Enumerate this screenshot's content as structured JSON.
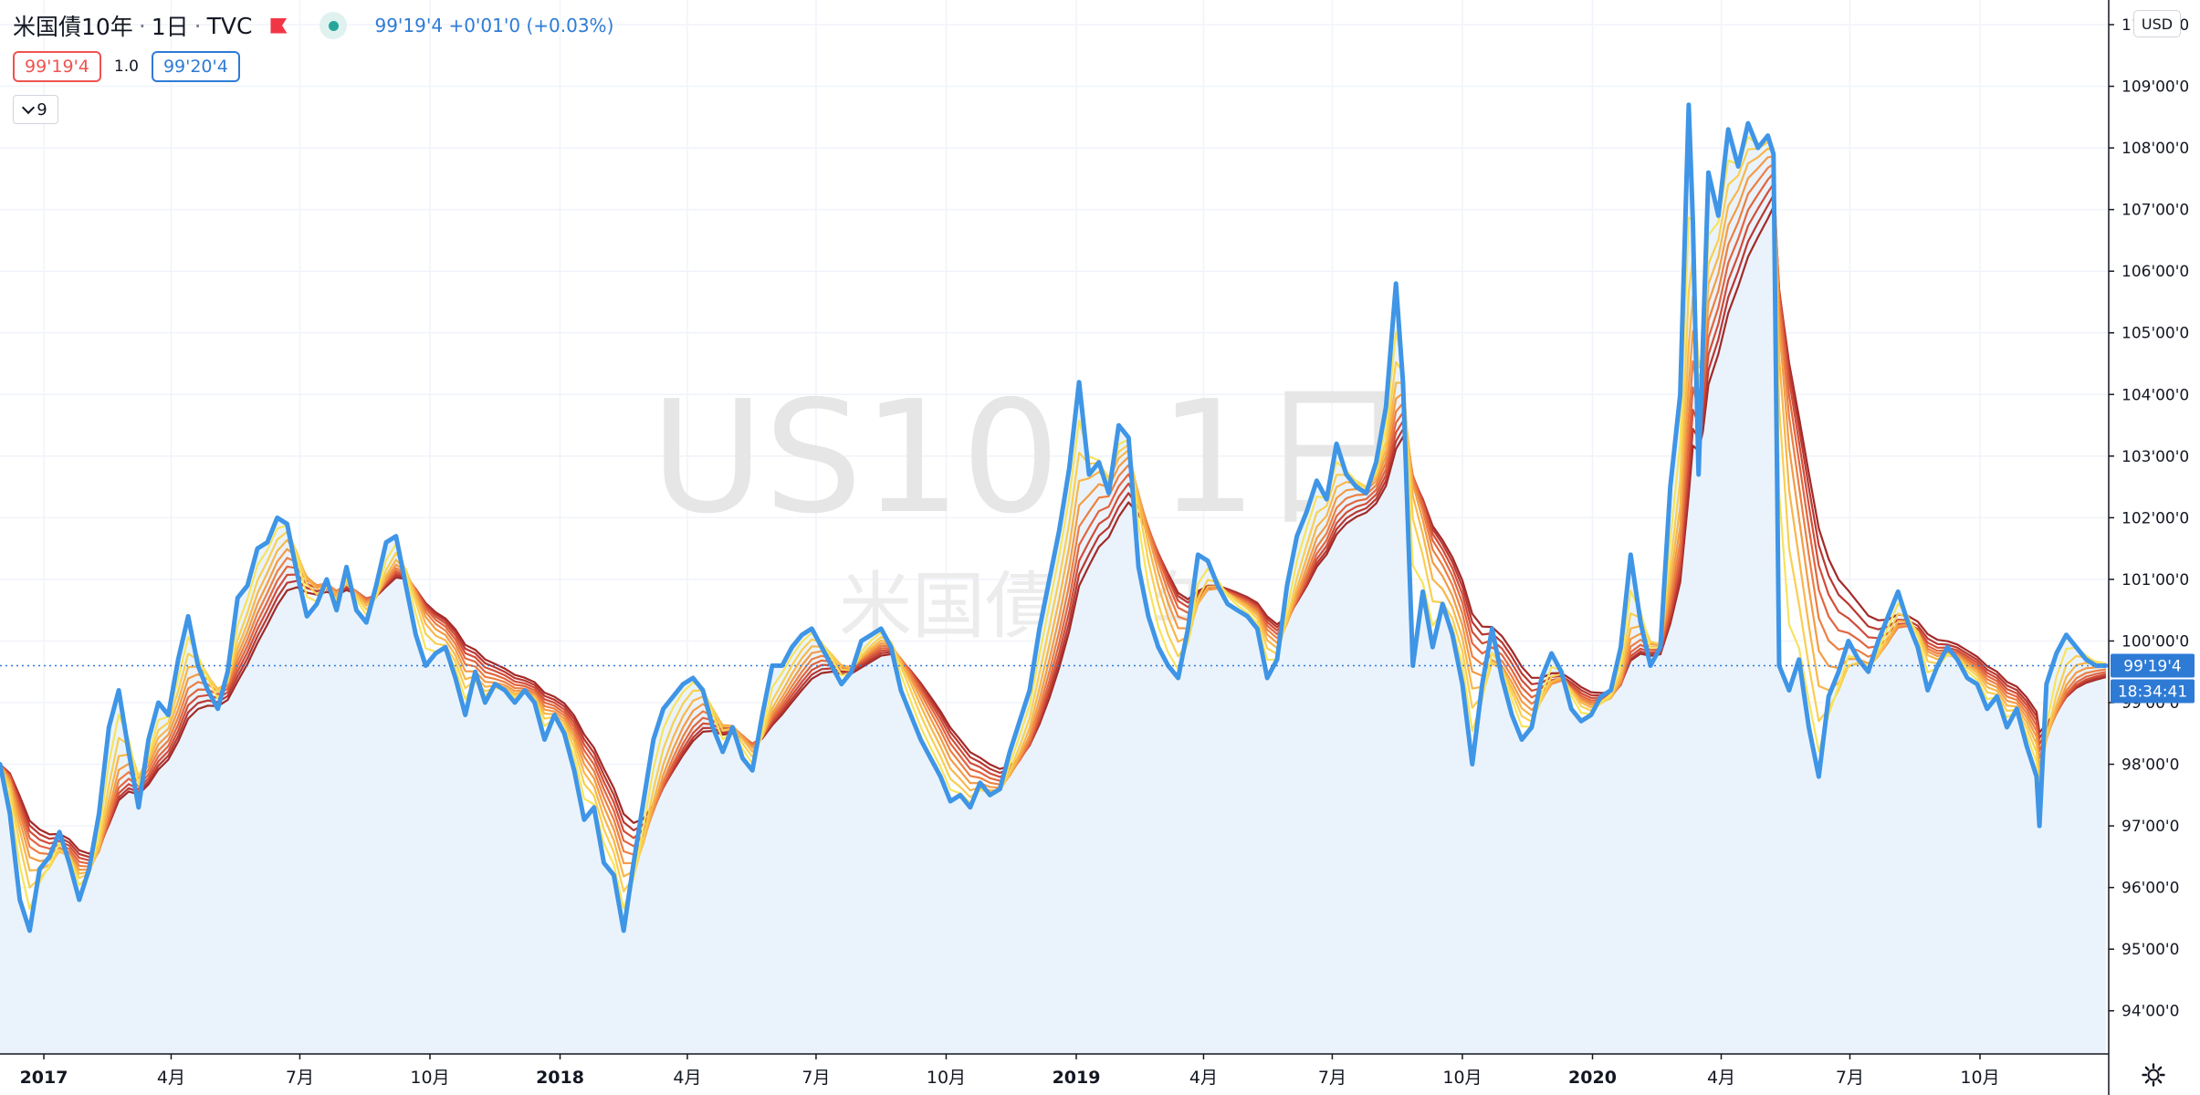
{
  "header": {
    "symbol_name": "米国債10年",
    "interval": "1日",
    "exchange": "TVC",
    "last_price": "99'19'4",
    "change": "+0'01'0",
    "change_pct": "(+0.03%)"
  },
  "quote": {
    "bid": "99'19'4",
    "spread": "1.0",
    "ask": "99'20'4"
  },
  "indicators_toggle": {
    "count": "9"
  },
  "currency_button": "USD",
  "price_tag": {
    "value": "99'19'4",
    "countdown": "18:34:41"
  },
  "watermark": {
    "symbol": "US10, 1日",
    "description": "米国債10年"
  },
  "colors": {
    "price_line": "#3f95e6",
    "area_fill": "#eaf3fc",
    "ribbon": [
      "#f7e45c",
      "#f9cf52",
      "#f8b64a",
      "#f39b45",
      "#ec7f43",
      "#e2653f",
      "#d14d39",
      "#ba3832",
      "#a12a28"
    ]
  },
  "chart_data": {
    "type": "line",
    "title": "",
    "xlabel": "",
    "ylabel": "",
    "x_range": [
      "2016-12-01",
      "2020-12-31"
    ],
    "ylim": [
      93.3,
      110.4
    ],
    "grid": true,
    "y_ticks": [
      {
        "value": 94,
        "label": "94'00'0"
      },
      {
        "value": 95,
        "label": "95'00'0"
      },
      {
        "value": 96,
        "label": "96'00'0"
      },
      {
        "value": 97,
        "label": "97'00'0"
      },
      {
        "value": 98,
        "label": "98'00'0"
      },
      {
        "value": 99,
        "label": "99'00'0"
      },
      {
        "value": 100,
        "label": "100'00'0"
      },
      {
        "value": 101,
        "label": "101'00'0"
      },
      {
        "value": 102,
        "label": "102'00'0"
      },
      {
        "value": 103,
        "label": "103'00'0"
      },
      {
        "value": 104,
        "label": "104'00'0"
      },
      {
        "value": 105,
        "label": "105'00'0"
      },
      {
        "value": 106,
        "label": "106'00'0"
      },
      {
        "value": 107,
        "label": "107'00'0"
      },
      {
        "value": 108,
        "label": "108'00'0"
      },
      {
        "value": 109,
        "label": "109'00'0"
      },
      {
        "value": 110,
        "label": "110'00'0"
      }
    ],
    "x_ticks": [
      {
        "date": "2017-01-01",
        "label": "2017",
        "bold": true
      },
      {
        "date": "2017-04-01",
        "label": "4月"
      },
      {
        "date": "2017-07-01",
        "label": "7月"
      },
      {
        "date": "2017-10-01",
        "label": "10月"
      },
      {
        "date": "2018-01-01",
        "label": "2018",
        "bold": true
      },
      {
        "date": "2018-04-01",
        "label": "4月"
      },
      {
        "date": "2018-07-01",
        "label": "7月"
      },
      {
        "date": "2018-10-01",
        "label": "10月"
      },
      {
        "date": "2019-01-01",
        "label": "2019",
        "bold": true
      },
      {
        "date": "2019-04-01",
        "label": "4月"
      },
      {
        "date": "2019-07-01",
        "label": "7月"
      },
      {
        "date": "2019-10-01",
        "label": "10月"
      },
      {
        "date": "2020-01-01",
        "label": "2020",
        "bold": true
      },
      {
        "date": "2020-04-01",
        "label": "4月"
      },
      {
        "date": "2020-07-01",
        "label": "7月"
      },
      {
        "date": "2020-10-01",
        "label": "10月"
      }
    ],
    "series": [
      {
        "values": [
          [
            "2016-12-01",
            98.0
          ],
          [
            "2016-12-08",
            97.2
          ],
          [
            "2016-12-15",
            95.8
          ],
          [
            "2016-12-22",
            95.3
          ],
          [
            "2016-12-29",
            96.3
          ],
          [
            "2017-01-05",
            96.5
          ],
          [
            "2017-01-12",
            96.9
          ],
          [
            "2017-01-19",
            96.4
          ],
          [
            "2017-01-26",
            95.8
          ],
          [
            "2017-02-02",
            96.3
          ],
          [
            "2017-02-09",
            97.2
          ],
          [
            "2017-02-16",
            98.6
          ],
          [
            "2017-02-23",
            99.2
          ],
          [
            "2017-03-02",
            98.2
          ],
          [
            "2017-03-09",
            97.3
          ],
          [
            "2017-03-16",
            98.4
          ],
          [
            "2017-03-23",
            99.0
          ],
          [
            "2017-03-30",
            98.8
          ],
          [
            "2017-04-06",
            99.7
          ],
          [
            "2017-04-13",
            100.4
          ],
          [
            "2017-04-20",
            99.6
          ],
          [
            "2017-04-27",
            99.2
          ],
          [
            "2017-05-04",
            98.9
          ],
          [
            "2017-05-11",
            99.5
          ],
          [
            "2017-05-18",
            100.7
          ],
          [
            "2017-05-25",
            100.9
          ],
          [
            "2017-06-01",
            101.5
          ],
          [
            "2017-06-08",
            101.6
          ],
          [
            "2017-06-15",
            102.0
          ],
          [
            "2017-06-22",
            101.9
          ],
          [
            "2017-06-29",
            101.1
          ],
          [
            "2017-07-06",
            100.4
          ],
          [
            "2017-07-13",
            100.6
          ],
          [
            "2017-07-20",
            101.0
          ],
          [
            "2017-07-27",
            100.5
          ],
          [
            "2017-08-03",
            101.2
          ],
          [
            "2017-08-10",
            100.5
          ],
          [
            "2017-08-17",
            100.3
          ],
          [
            "2017-08-24",
            100.9
          ],
          [
            "2017-08-31",
            101.6
          ],
          [
            "2017-09-07",
            101.7
          ],
          [
            "2017-09-14",
            100.9
          ],
          [
            "2017-09-21",
            100.1
          ],
          [
            "2017-09-28",
            99.6
          ],
          [
            "2017-10-05",
            99.8
          ],
          [
            "2017-10-12",
            99.9
          ],
          [
            "2017-10-19",
            99.4
          ],
          [
            "2017-10-26",
            98.8
          ],
          [
            "2017-11-02",
            99.5
          ],
          [
            "2017-11-09",
            99.0
          ],
          [
            "2017-11-16",
            99.3
          ],
          [
            "2017-11-23",
            99.2
          ],
          [
            "2017-11-30",
            99.0
          ],
          [
            "2017-12-07",
            99.2
          ],
          [
            "2017-12-14",
            99.0
          ],
          [
            "2017-12-21",
            98.4
          ],
          [
            "2017-12-28",
            98.8
          ],
          [
            "2018-01-04",
            98.5
          ],
          [
            "2018-01-11",
            97.9
          ],
          [
            "2018-01-18",
            97.1
          ],
          [
            "2018-01-25",
            97.3
          ],
          [
            "2018-02-01",
            96.4
          ],
          [
            "2018-02-08",
            96.2
          ],
          [
            "2018-02-15",
            95.3
          ],
          [
            "2018-02-22",
            96.4
          ],
          [
            "2018-03-01",
            97.4
          ],
          [
            "2018-03-08",
            98.4
          ],
          [
            "2018-03-15",
            98.9
          ],
          [
            "2018-03-22",
            99.1
          ],
          [
            "2018-03-29",
            99.3
          ],
          [
            "2018-04-05",
            99.4
          ],
          [
            "2018-04-12",
            99.2
          ],
          [
            "2018-04-19",
            98.6
          ],
          [
            "2018-04-26",
            98.2
          ],
          [
            "2018-05-03",
            98.6
          ],
          [
            "2018-05-10",
            98.1
          ],
          [
            "2018-05-17",
            97.9
          ],
          [
            "2018-05-24",
            98.8
          ],
          [
            "2018-05-31",
            99.6
          ],
          [
            "2018-06-07",
            99.6
          ],
          [
            "2018-06-14",
            99.9
          ],
          [
            "2018-06-21",
            100.1
          ],
          [
            "2018-06-28",
            100.2
          ],
          [
            "2018-07-05",
            99.9
          ],
          [
            "2018-07-12",
            99.6
          ],
          [
            "2018-07-19",
            99.3
          ],
          [
            "2018-07-26",
            99.5
          ],
          [
            "2018-08-02",
            100.0
          ],
          [
            "2018-08-09",
            100.1
          ],
          [
            "2018-08-16",
            100.2
          ],
          [
            "2018-08-23",
            99.9
          ],
          [
            "2018-08-30",
            99.2
          ],
          [
            "2018-09-06",
            98.8
          ],
          [
            "2018-09-13",
            98.4
          ],
          [
            "2018-09-20",
            98.1
          ],
          [
            "2018-09-27",
            97.8
          ],
          [
            "2018-10-04",
            97.4
          ],
          [
            "2018-10-11",
            97.5
          ],
          [
            "2018-10-18",
            97.3
          ],
          [
            "2018-10-25",
            97.7
          ],
          [
            "2018-11-01",
            97.5
          ],
          [
            "2018-11-08",
            97.6
          ],
          [
            "2018-11-15",
            98.2
          ],
          [
            "2018-11-22",
            98.7
          ],
          [
            "2018-11-29",
            99.2
          ],
          [
            "2018-12-06",
            100.2
          ],
          [
            "2018-12-13",
            101.0
          ],
          [
            "2018-12-20",
            101.8
          ],
          [
            "2018-12-27",
            102.8
          ],
          [
            "2019-01-03",
            104.2
          ],
          [
            "2019-01-10",
            102.7
          ],
          [
            "2019-01-17",
            102.9
          ],
          [
            "2019-01-24",
            102.4
          ],
          [
            "2019-01-31",
            103.5
          ],
          [
            "2019-02-07",
            103.3
          ],
          [
            "2019-02-14",
            101.2
          ],
          [
            "2019-02-21",
            100.4
          ],
          [
            "2019-02-28",
            99.9
          ],
          [
            "2019-03-07",
            99.6
          ],
          [
            "2019-03-14",
            99.4
          ],
          [
            "2019-03-21",
            100.2
          ],
          [
            "2019-03-28",
            101.4
          ],
          [
            "2019-04-04",
            101.3
          ],
          [
            "2019-04-11",
            100.9
          ],
          [
            "2019-04-18",
            100.6
          ],
          [
            "2019-04-25",
            100.5
          ],
          [
            "2019-05-02",
            100.4
          ],
          [
            "2019-05-09",
            100.2
          ],
          [
            "2019-05-16",
            99.4
          ],
          [
            "2019-05-23",
            99.7
          ],
          [
            "2019-05-30",
            100.9
          ],
          [
            "2019-06-06",
            101.7
          ],
          [
            "2019-06-13",
            102.1
          ],
          [
            "2019-06-20",
            102.6
          ],
          [
            "2019-06-27",
            102.3
          ],
          [
            "2019-07-04",
            103.2
          ],
          [
            "2019-07-11",
            102.7
          ],
          [
            "2019-07-18",
            102.5
          ],
          [
            "2019-07-25",
            102.4
          ],
          [
            "2019-08-01",
            102.9
          ],
          [
            "2019-08-08",
            103.8
          ],
          [
            "2019-08-15",
            105.8
          ],
          [
            "2019-08-20",
            104.2
          ],
          [
            "2019-08-27",
            99.6
          ],
          [
            "2019-09-03",
            100.8
          ],
          [
            "2019-09-10",
            99.9
          ],
          [
            "2019-09-17",
            100.6
          ],
          [
            "2019-09-24",
            100.1
          ],
          [
            "2019-10-01",
            99.3
          ],
          [
            "2019-10-08",
            98.0
          ],
          [
            "2019-10-15",
            99.3
          ],
          [
            "2019-10-22",
            100.2
          ],
          [
            "2019-10-29",
            99.4
          ],
          [
            "2019-11-05",
            98.8
          ],
          [
            "2019-11-12",
            98.4
          ],
          [
            "2019-11-19",
            98.6
          ],
          [
            "2019-11-26",
            99.4
          ],
          [
            "2019-12-03",
            99.8
          ],
          [
            "2019-12-10",
            99.5
          ],
          [
            "2019-12-17",
            98.9
          ],
          [
            "2019-12-24",
            98.7
          ],
          [
            "2019-12-31",
            98.8
          ],
          [
            "2020-01-07",
            99.1
          ],
          [
            "2020-01-14",
            99.2
          ],
          [
            "2020-01-21",
            99.9
          ],
          [
            "2020-01-28",
            101.4
          ],
          [
            "2020-02-04",
            100.3
          ],
          [
            "2020-02-11",
            99.6
          ],
          [
            "2020-02-18",
            99.9
          ],
          [
            "2020-02-25",
            102.5
          ],
          [
            "2020-03-03",
            104.0
          ],
          [
            "2020-03-09",
            108.7
          ],
          [
            "2020-03-12",
            106.8
          ],
          [
            "2020-03-16",
            102.7
          ],
          [
            "2020-03-19",
            104.8
          ],
          [
            "2020-03-23",
            107.6
          ],
          [
            "2020-03-30",
            106.9
          ],
          [
            "2020-04-06",
            108.3
          ],
          [
            "2020-04-13",
            107.7
          ],
          [
            "2020-04-20",
            108.4
          ],
          [
            "2020-04-27",
            108.0
          ],
          [
            "2020-05-04",
            108.2
          ],
          [
            "2020-05-08",
            107.9
          ],
          [
            "2020-05-12",
            99.6
          ],
          [
            "2020-05-19",
            99.2
          ],
          [
            "2020-05-26",
            99.7
          ],
          [
            "2020-06-02",
            98.6
          ],
          [
            "2020-06-09",
            97.8
          ],
          [
            "2020-06-16",
            99.1
          ],
          [
            "2020-06-23",
            99.5
          ],
          [
            "2020-06-30",
            100.0
          ],
          [
            "2020-07-07",
            99.7
          ],
          [
            "2020-07-14",
            99.5
          ],
          [
            "2020-07-21",
            100.0
          ],
          [
            "2020-07-28",
            100.4
          ],
          [
            "2020-08-04",
            100.8
          ],
          [
            "2020-08-11",
            100.3
          ],
          [
            "2020-08-18",
            99.9
          ],
          [
            "2020-08-25",
            99.2
          ],
          [
            "2020-09-01",
            99.6
          ],
          [
            "2020-09-08",
            99.9
          ],
          [
            "2020-09-15",
            99.7
          ],
          [
            "2020-09-22",
            99.4
          ],
          [
            "2020-09-29",
            99.3
          ],
          [
            "2020-10-06",
            98.9
          ],
          [
            "2020-10-13",
            99.1
          ],
          [
            "2020-10-20",
            98.6
          ],
          [
            "2020-10-27",
            98.9
          ],
          [
            "2020-11-03",
            98.3
          ],
          [
            "2020-11-10",
            97.8
          ],
          [
            "2020-11-12",
            97.0
          ],
          [
            "2020-11-17",
            99.3
          ],
          [
            "2020-11-24",
            99.8
          ],
          [
            "2020-12-01",
            100.1
          ],
          [
            "2020-12-08",
            99.9
          ],
          [
            "2020-12-15",
            99.7
          ],
          [
            "2020-12-22",
            99.6
          ],
          [
            "2020-12-29",
            99.6
          ]
        ]
      }
    ]
  }
}
